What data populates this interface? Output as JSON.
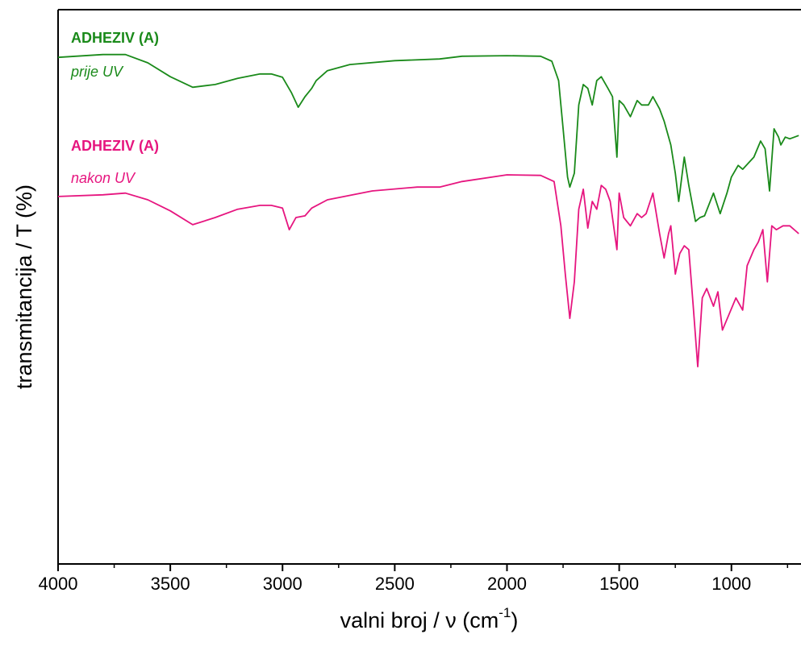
{
  "chart_data": {
    "type": "line",
    "y_label": "transmitancija / T (%)",
    "x_label": {
      "text": "valni broj / ν (cm",
      "sup": "-1",
      "end": ")"
    },
    "xlim": [
      4000,
      690
    ],
    "xticks": [
      4000,
      3500,
      3000,
      2500,
      2000,
      1500,
      1000
    ],
    "xminorticks": [
      3750,
      3250,
      2750,
      2250,
      1750,
      1250,
      750
    ],
    "ylim": [
      0,
      100
    ],
    "series": [
      {
        "name": "ADHEZIV (A)",
        "note": "prije UV",
        "color": "#1a8a1a",
        "x": [
          4000,
          3800,
          3700,
          3600,
          3500,
          3400,
          3300,
          3200,
          3100,
          3050,
          3000,
          2960,
          2930,
          2900,
          2870,
          2850,
          2800,
          2700,
          2500,
          2300,
          2200,
          2000,
          1850,
          1800,
          1770,
          1750,
          1730,
          1720,
          1700,
          1680,
          1660,
          1640,
          1620,
          1600,
          1580,
          1550,
          1530,
          1510,
          1500,
          1480,
          1450,
          1420,
          1400,
          1370,
          1350,
          1320,
          1300,
          1270,
          1250,
          1235,
          1210,
          1190,
          1160,
          1140,
          1120,
          1080,
          1050,
          1020,
          1000,
          970,
          950,
          900,
          870,
          850,
          830,
          810,
          790,
          780,
          760,
          740,
          700
        ],
        "values": [
          91.4,
          91.9,
          91.9,
          90.4,
          87.9,
          86.0,
          86.5,
          87.6,
          88.4,
          88.4,
          87.8,
          85.0,
          82.4,
          84.3,
          85.8,
          87.2,
          89.0,
          90.1,
          90.8,
          91.1,
          91.6,
          91.7,
          91.6,
          90.7,
          87.2,
          78.5,
          69.8,
          68.0,
          70.5,
          82.8,
          86.5,
          85.8,
          82.8,
          87.2,
          87.9,
          85.8,
          84.3,
          73.4,
          83.6,
          82.8,
          80.7,
          83.6,
          82.8,
          82.8,
          84.3,
          82.1,
          79.9,
          75.6,
          70.5,
          65.4,
          73.4,
          68.3,
          61.8,
          62.5,
          62.8,
          66.9,
          63.2,
          66.9,
          69.8,
          71.9,
          71.2,
          73.4,
          76.3,
          74.9,
          67.3,
          78.5,
          77.0,
          75.6,
          77.0,
          76.7,
          77.3
        ]
      },
      {
        "name": "ADHEZIV (A)",
        "note": "nakon UV",
        "color": "#e6157f",
        "x": [
          4000,
          3800,
          3700,
          3600,
          3500,
          3400,
          3300,
          3200,
          3100,
          3050,
          3000,
          2970,
          2940,
          2900,
          2870,
          2800,
          2600,
          2400,
          2300,
          2200,
          2000,
          1850,
          1790,
          1760,
          1740,
          1720,
          1700,
          1680,
          1660,
          1640,
          1620,
          1600,
          1580,
          1560,
          1540,
          1510,
          1500,
          1480,
          1450,
          1420,
          1400,
          1380,
          1350,
          1320,
          1300,
          1280,
          1270,
          1250,
          1230,
          1210,
          1190,
          1170,
          1150,
          1130,
          1110,
          1080,
          1060,
          1040,
          1010,
          980,
          950,
          930,
          900,
          880,
          860,
          840,
          820,
          800,
          770,
          740,
          700
        ],
        "values": [
          66.3,
          66.6,
          66.9,
          65.7,
          63.7,
          61.2,
          62.5,
          64.0,
          64.7,
          64.7,
          64.2,
          60.3,
          62.5,
          62.8,
          64.2,
          65.7,
          67.3,
          68.0,
          68.0,
          69.0,
          70.2,
          70.1,
          69.0,
          61.0,
          52.3,
          44.3,
          50.9,
          64.0,
          67.6,
          60.6,
          65.4,
          64.0,
          68.3,
          67.6,
          65.4,
          56.7,
          66.9,
          62.5,
          61.0,
          63.2,
          62.5,
          63.2,
          66.9,
          59.6,
          55.2,
          59.6,
          61.0,
          52.3,
          56.0,
          57.4,
          56.7,
          46.5,
          35.6,
          48.0,
          49.7,
          46.5,
          49.1,
          42.2,
          45.1,
          48.0,
          45.8,
          53.8,
          56.7,
          58.1,
          60.3,
          50.9,
          61.0,
          60.3,
          61.0,
          61.0,
          59.6
        ]
      }
    ]
  }
}
